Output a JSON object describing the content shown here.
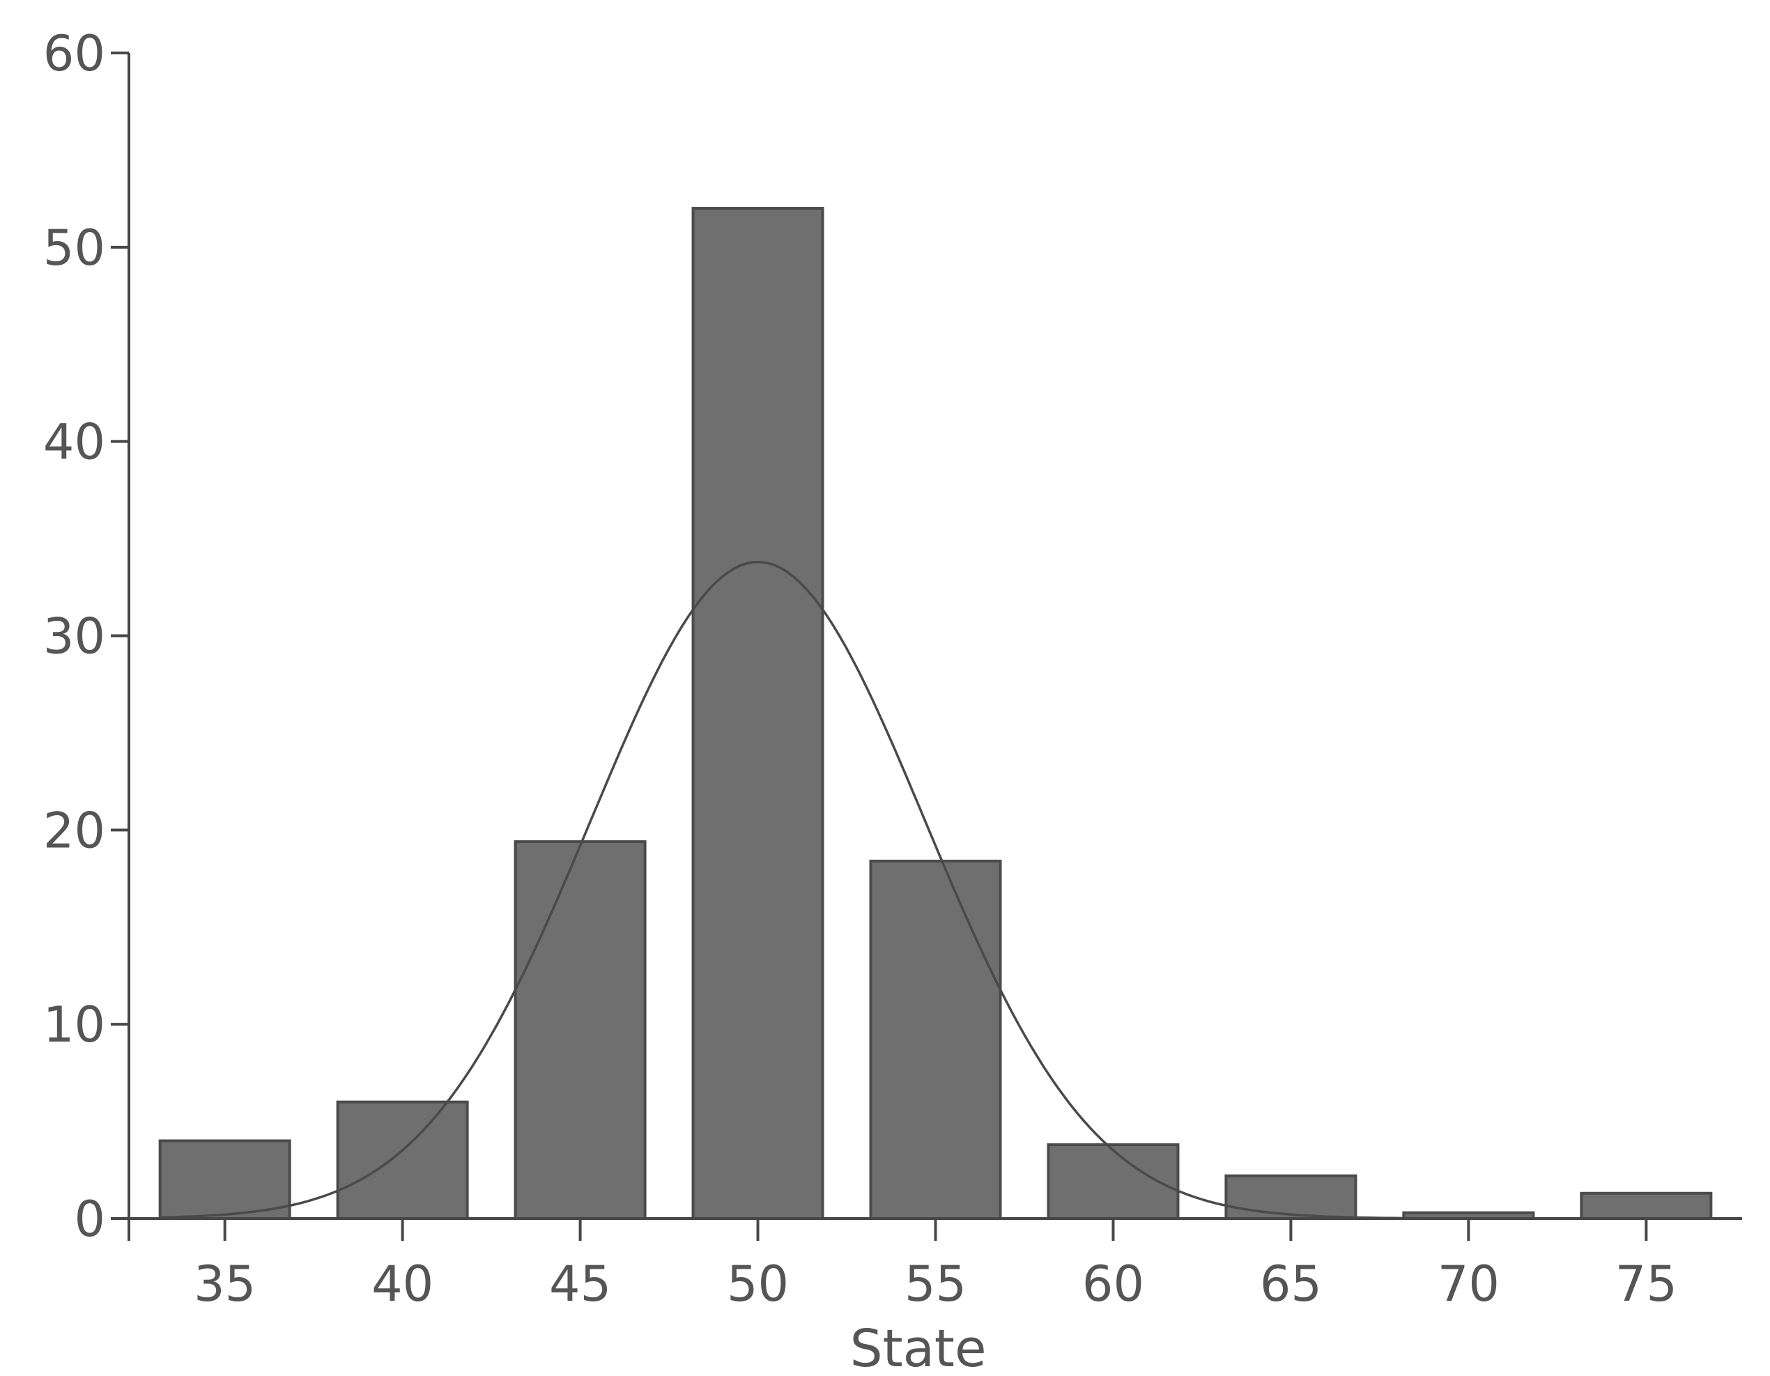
{
  "chart_data": {
    "type": "bar",
    "title": "",
    "xlabel": "State",
    "ylabel": "",
    "categories": [
      "35",
      "40",
      "45",
      "50",
      "55",
      "60",
      "65",
      "70",
      "75"
    ],
    "x": [
      35,
      40,
      45,
      50,
      55,
      60,
      65,
      70,
      75
    ],
    "values": [
      4,
      6,
      19.4,
      52,
      18.4,
      3.8,
      2.2,
      0.3,
      1.3
    ],
    "ylim": [
      0,
      60
    ],
    "xlim": [
      32.3,
      77.7
    ],
    "yticks": [
      "0",
      "10",
      "20",
      "30",
      "40",
      "50",
      "60"
    ],
    "xticks": [
      "35",
      "40",
      "45",
      "50",
      "55",
      "60",
      "65",
      "70",
      "75"
    ],
    "grid": false,
    "legend": "none",
    "overlay": {
      "type": "normal-curve",
      "mean": 50,
      "peak": 33.8,
      "sd": 4.7
    },
    "colors": {
      "bar_fill": "#6f6f6f",
      "bar_edge": "#4b4b4b",
      "curve": "#4a4a4a",
      "axis": "#474747",
      "text": "#555555"
    }
  }
}
